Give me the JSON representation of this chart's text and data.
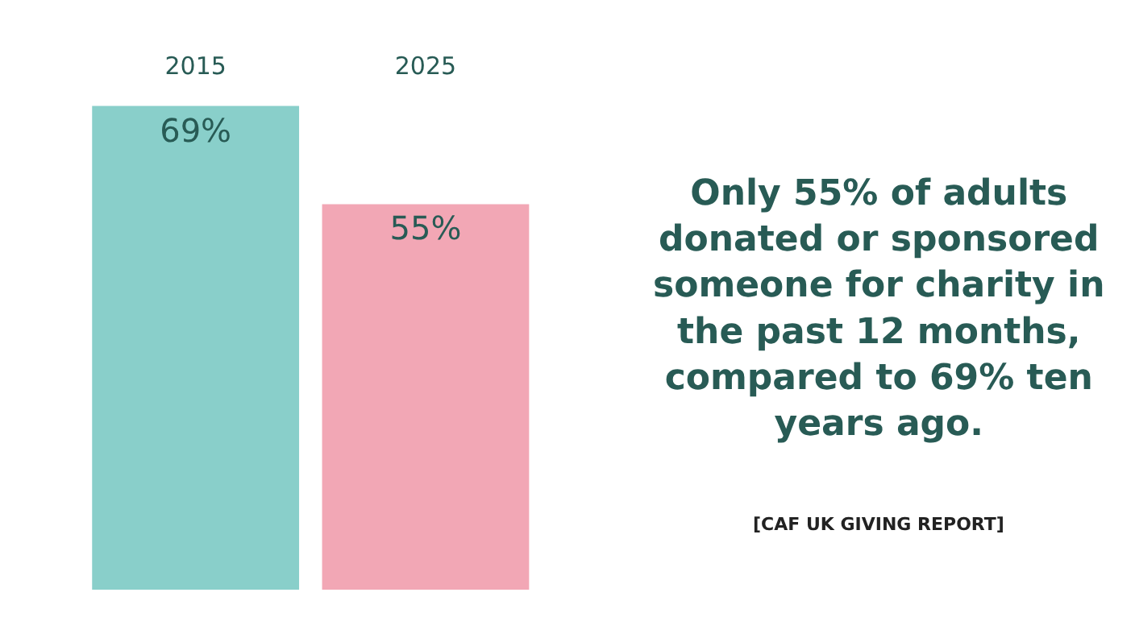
{
  "chart_data": {
    "type": "bar",
    "categories": [
      "2015",
      "2025"
    ],
    "values": [
      69,
      55
    ],
    "colors": [
      "#89cfca",
      "#f2a7b5"
    ],
    "value_labels": [
      "69%",
      "55%"
    ],
    "tick_labels": "x",
    "annotations": [
      "Only 55% of adults\ndonated or sponsored\nsomeone for charity in\nthe past 12 months,\ncompared to 69% ten\nyears ago.",
      "[CAF UK GIVING REPORT]"
    ]
  }
}
